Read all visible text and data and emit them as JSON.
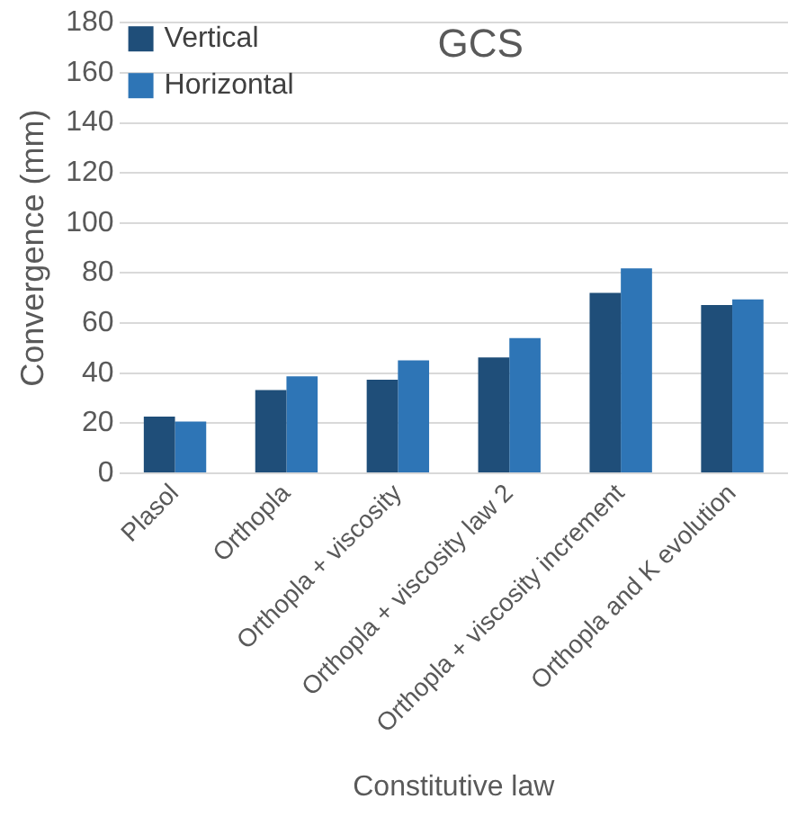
{
  "chart_data": {
    "type": "bar",
    "title": "GCS",
    "xlabel": "Constitutive law",
    "ylabel": "Convergence (mm)",
    "categories": [
      "Plasol",
      "Orthopla",
      "Orthopla + viscosity",
      "Orthopla + viscosity law 2",
      "Orthopla + viscosity increment",
      "Orthopla and K evolution"
    ],
    "series": [
      {
        "name": "Vertical",
        "color": "#1f4e79",
        "values": [
          22.7,
          33.3,
          37.4,
          46.3,
          72.1,
          67.2
        ]
      },
      {
        "name": "Horizontal",
        "color": "#2e75b6",
        "values": [
          20.7,
          38.8,
          45.1,
          54,
          81.9,
          69.5
        ]
      }
    ],
    "ylim": [
      0,
      180
    ],
    "yticks": [
      0,
      20,
      40,
      60,
      80,
      100,
      120,
      140,
      160,
      180
    ],
    "grid": "y",
    "legend": "top left"
  }
}
